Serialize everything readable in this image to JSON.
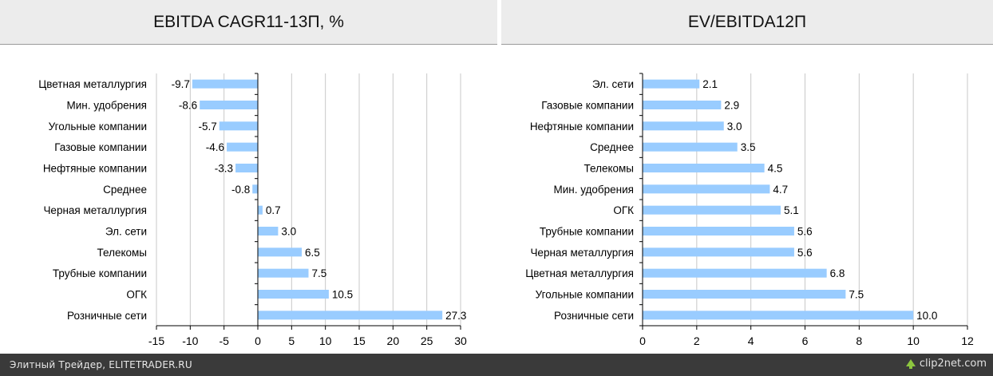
{
  "left_title": "EBITDA CAGR11-13П, %",
  "right_title": "EV/EBITDA12П",
  "footer": {
    "credit": "Элитный Трейдер, ELITETRADER.RU",
    "watermark": "clip2net.com"
  },
  "colors": {
    "bar": "#99ccff",
    "grid": "#c8c8c8",
    "axis": "#000000"
  },
  "chart_data": [
    {
      "type": "bar",
      "orientation": "horizontal",
      "title": "EBITDA CAGR11-13П, %",
      "categories": [
        "Цветная металлургия",
        "Мин. удобрения",
        "Угольные компании",
        "Газовые компании",
        "Нефтяные компании",
        "Среднее",
        "Черная металлургия",
        "Эл. сети",
        "Телекомы",
        "Трубные компании",
        "ОГК",
        "Розничные сети"
      ],
      "values": [
        -9.7,
        -8.6,
        -5.7,
        -4.6,
        -3.3,
        -0.8,
        0.7,
        3.0,
        6.5,
        7.5,
        10.5,
        27.3
      ],
      "value_labels": [
        "-9.7",
        "-8.6",
        "-5.7",
        "-4.6",
        "-3.3",
        "-0.8",
        "0.7",
        "3.0",
        "6.5",
        "7.5",
        "10.5",
        "27.3"
      ],
      "xlim": [
        -15,
        30
      ],
      "xticks": [
        -15,
        -10,
        -5,
        0,
        5,
        10,
        15,
        20,
        25,
        30
      ],
      "grid": true
    },
    {
      "type": "bar",
      "orientation": "horizontal",
      "title": "EV/EBITDA12П",
      "categories": [
        "Эл. сети",
        "Газовые компании",
        "Нефтяные компании",
        "Среднее",
        "Телекомы",
        "Мин. удобрения",
        "ОГК",
        "Трубные компании",
        "Черная металлургия",
        "Цветная металлургия",
        "Угольные компании",
        "Розничные сети"
      ],
      "values": [
        2.1,
        2.9,
        3.0,
        3.5,
        4.5,
        4.7,
        5.1,
        5.6,
        5.6,
        6.8,
        7.5,
        10.0
      ],
      "value_labels": [
        "2.1",
        "2.9",
        "3.0",
        "3.5",
        "4.5",
        "4.7",
        "5.1",
        "5.6",
        "5.6",
        "6.8",
        "7.5",
        "10.0"
      ],
      "xlim": [
        0,
        12
      ],
      "xticks": [
        0,
        2,
        4,
        6,
        8,
        10,
        12
      ],
      "grid": true
    }
  ]
}
